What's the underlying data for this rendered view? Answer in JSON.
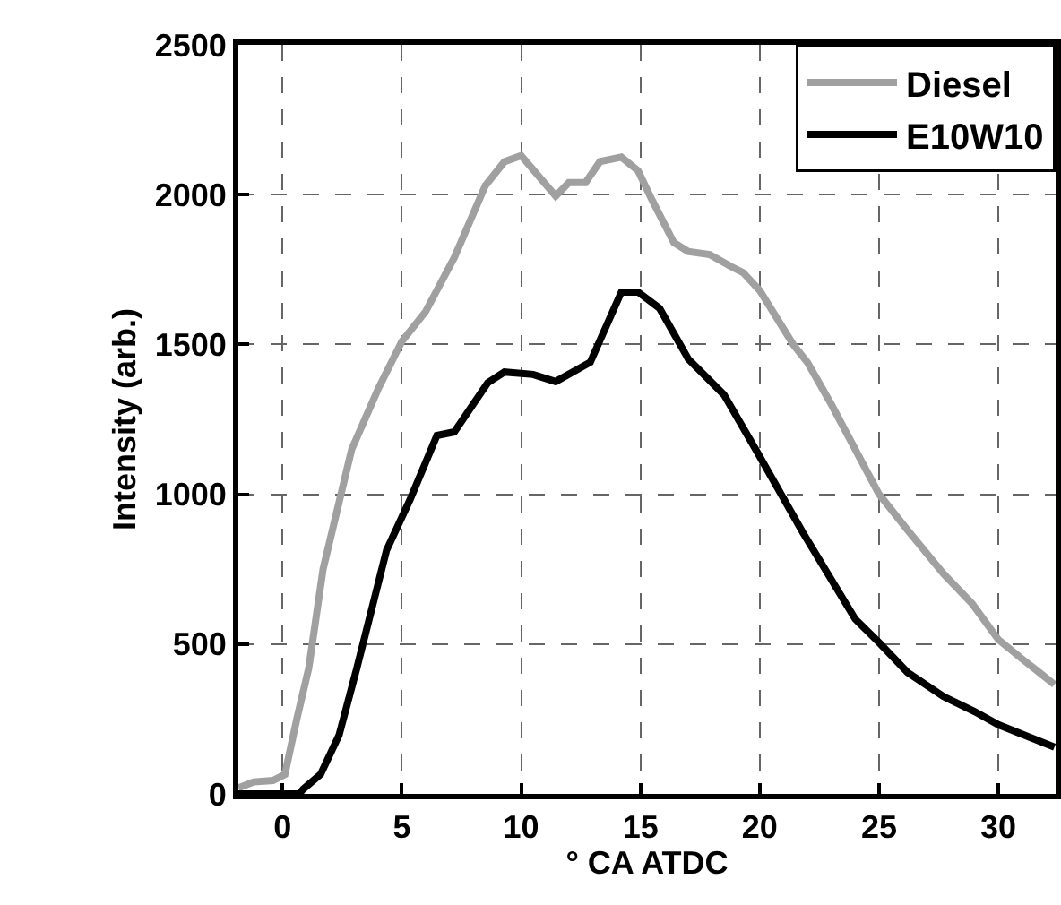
{
  "chart_data": {
    "type": "line",
    "xlabel": "° CA ATDC",
    "ylabel": "Intensity (arb.)",
    "xlim": [
      -1.85,
      32.4
    ],
    "ylim": [
      0,
      2500
    ],
    "xticks": [
      0,
      5,
      10,
      15,
      20,
      25,
      30
    ],
    "yticks": [
      0,
      500,
      1000,
      1500,
      2000,
      2500
    ],
    "grid": true,
    "legend": "top right",
    "marker": "none",
    "line_style": "solid",
    "series": [
      {
        "name": "Diesel",
        "color": "#a0a0a0",
        "x": [
          -1.85,
          -1.2,
          -0.4,
          0.1,
          0.6,
          1.1,
          1.7,
          2.9,
          4,
          5,
          6,
          7.2,
          8.5,
          9.3,
          10,
          11.45,
          12,
          12.7,
          13.3,
          14.2,
          14.9,
          15.5,
          16.4,
          17,
          17.9,
          18.8,
          19.3,
          20,
          21.4,
          22,
          23,
          24,
          25,
          26.2,
          27.7,
          28.9,
          30,
          31,
          31.8,
          32.35
        ],
        "values": [
          20,
          40,
          45,
          65,
          250,
          420,
          750,
          1150,
          1350,
          1510,
          1610,
          1790,
          2030,
          2110,
          2130,
          1995,
          2040,
          2040,
          2110,
          2125,
          2080,
          1980,
          1840,
          1810,
          1800,
          1760,
          1740,
          1680,
          1500,
          1440,
          1300,
          1150,
          1000,
          880,
          735,
          635,
          515,
          450,
          400,
          365
        ]
      },
      {
        "name": "E10W10",
        "color": "#000000",
        "x": [
          -1.85,
          0.7,
          0.87,
          1.6,
          2.37,
          3.1,
          4.36,
          5.35,
          6.47,
          7.2,
          8.6,
          9.3,
          10.5,
          11.45,
          12.9,
          14.2,
          14.9,
          15.8,
          17,
          18.5,
          19.95,
          21.8,
          24,
          25,
          26.2,
          27.7,
          29,
          30,
          32.35
        ],
        "values": [
          0,
          0,
          16,
          66,
          196,
          415,
          813,
          983,
          1196,
          1208,
          1372,
          1408,
          1400,
          1376,
          1441,
          1675,
          1675,
          1621,
          1452,
          1332,
          1133,
          873,
          584,
          505,
          405,
          325,
          275,
          231,
          156
        ]
      }
    ]
  }
}
